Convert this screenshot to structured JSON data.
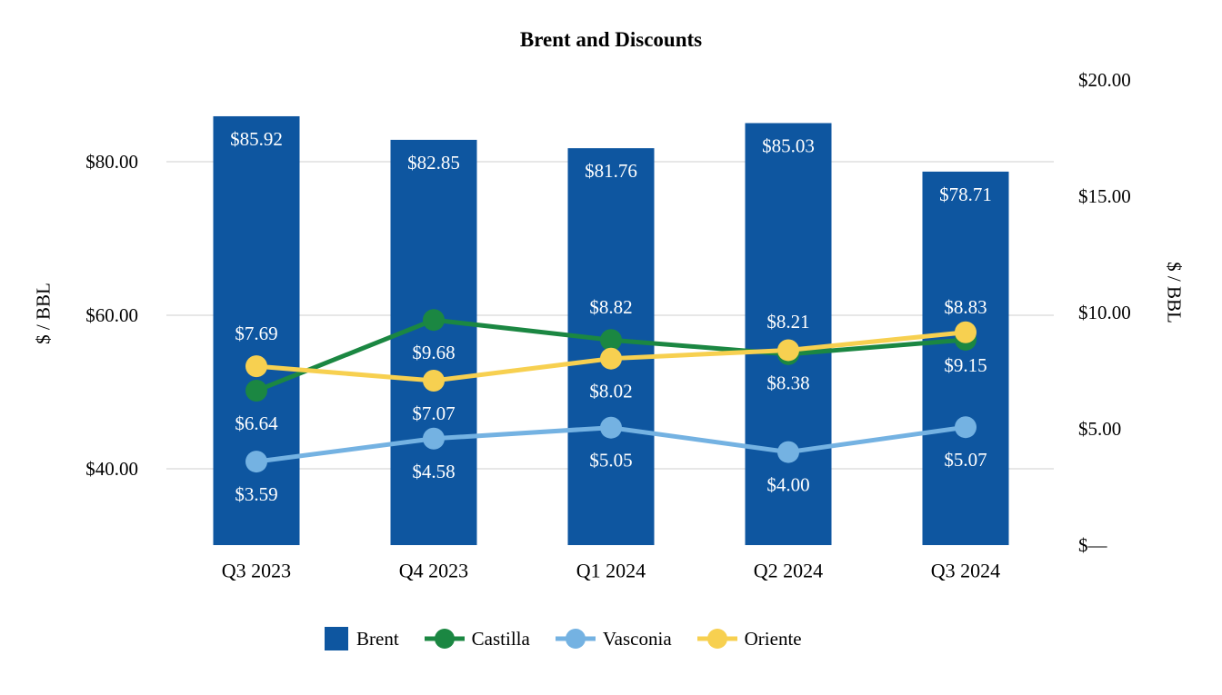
{
  "chart_data": {
    "type": "combo-bar-line",
    "title": "Brent and Discounts",
    "categories": [
      "Q3 2023",
      "Q4 2023",
      "Q1 2024",
      "Q2 2024",
      "Q3 2024"
    ],
    "left_axis": {
      "title": "$ / BBL",
      "tick_labels": [
        "$40.00",
        "$60.00",
        "$80.00"
      ],
      "tick_values": [
        40,
        60,
        80
      ]
    },
    "right_axis": {
      "title": "$ / BBL",
      "tick_labels": [
        "$—",
        "$5.00",
        "$10.00",
        "$15.00",
        "$20.00"
      ],
      "tick_values": [
        0,
        5,
        10,
        15,
        20
      ],
      "range": [
        0,
        20
      ]
    },
    "bar_series": {
      "name": "Brent",
      "axis": "left",
      "color": "#0E56A0",
      "values": [
        85.92,
        82.85,
        81.76,
        85.03,
        78.71
      ],
      "labels": [
        "$85.92",
        "$82.85",
        "$81.76",
        "$85.03",
        "$78.71"
      ]
    },
    "line_series": [
      {
        "name": "Castilla",
        "axis": "right",
        "color": "#1B8742",
        "values": [
          6.64,
          9.68,
          8.82,
          8.21,
          8.83
        ],
        "labels": [
          "$6.64",
          "$9.68",
          "$8.82",
          "$8.21",
          "$8.83"
        ],
        "label_positions": [
          "below",
          "below",
          "above",
          "above",
          "above"
        ]
      },
      {
        "name": "Vasconia",
        "axis": "right",
        "color": "#74B2E2",
        "values": [
          3.59,
          4.58,
          5.05,
          4.0,
          5.07
        ],
        "labels": [
          "$3.59",
          "$4.58",
          "$5.05",
          "$4.00",
          "$5.07"
        ],
        "label_positions": [
          "below",
          "below",
          "below",
          "below",
          "below"
        ]
      },
      {
        "name": "Oriente",
        "axis": "right",
        "color": "#F7D050",
        "values": [
          7.69,
          7.07,
          8.02,
          8.38,
          9.15
        ],
        "labels": [
          "$7.69",
          "$7.07",
          "$8.02",
          "$8.38",
          "$9.15"
        ],
        "label_positions": [
          "above",
          "below",
          "below",
          "below",
          "below"
        ]
      }
    ],
    "data_label_color": "#FFFFFF",
    "gridline_color": "#E7E7E7",
    "legend_position": "bottom",
    "grid": true
  }
}
